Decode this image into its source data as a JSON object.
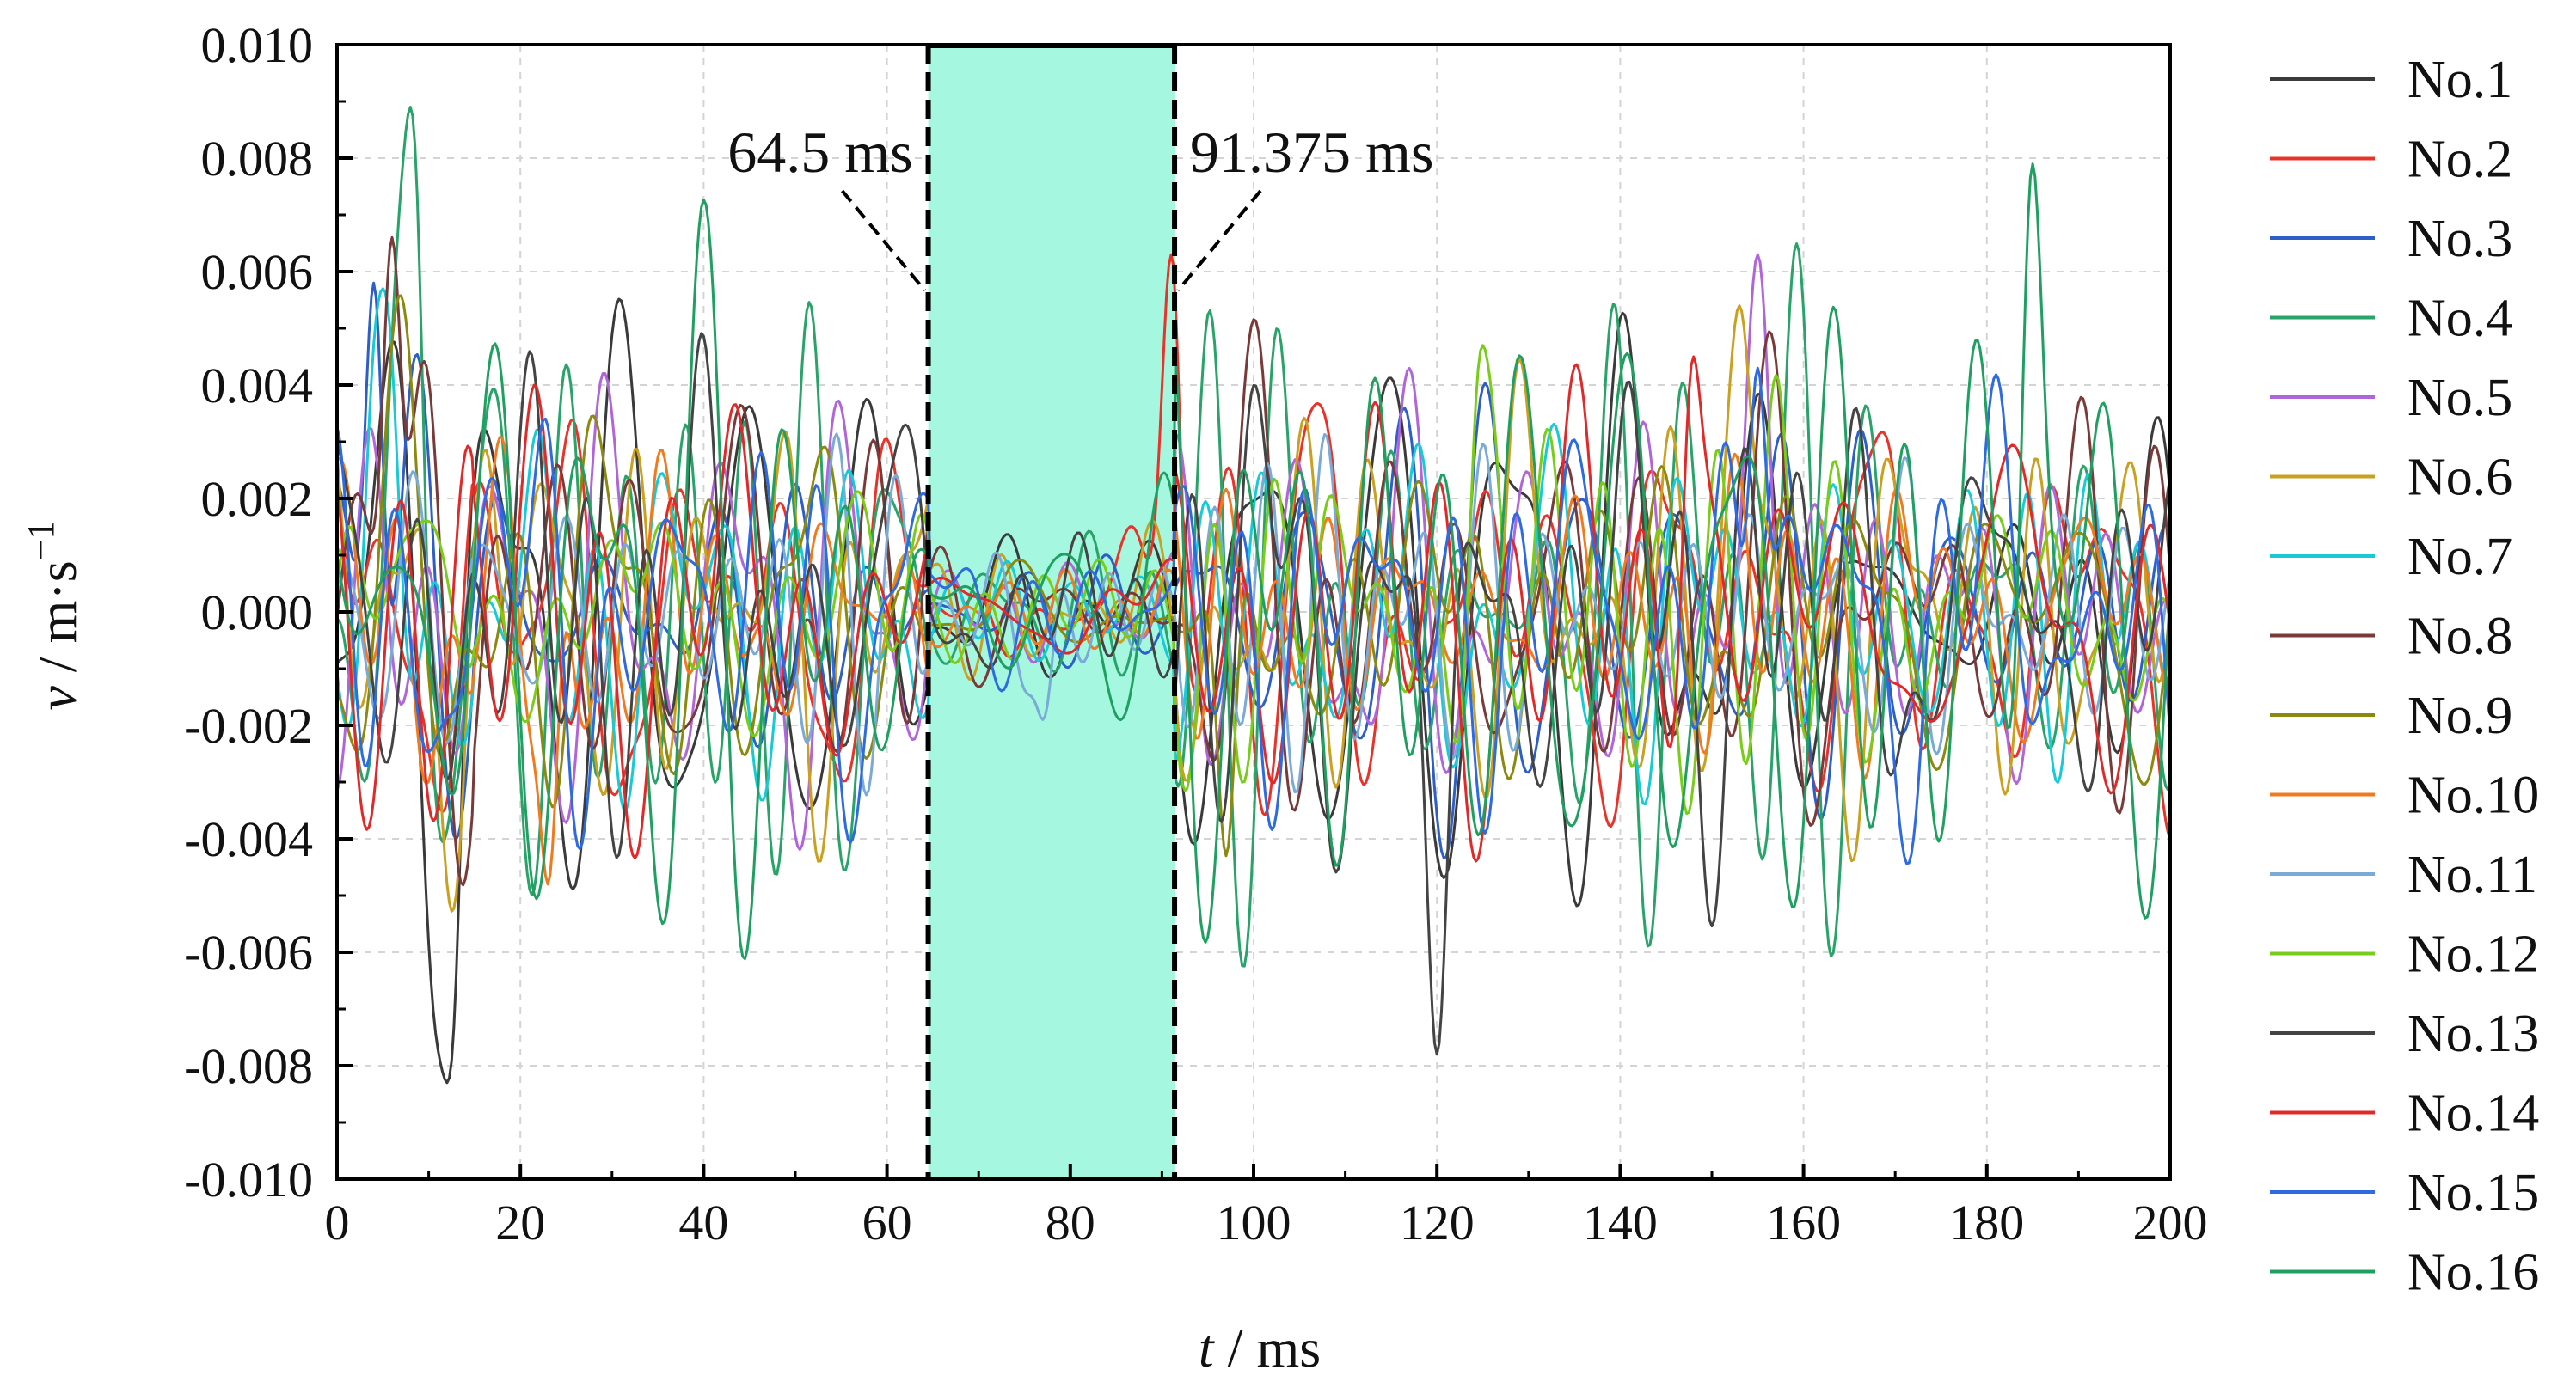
{
  "chart_data": {
    "type": "line",
    "title": "",
    "xlabel_var": "t",
    "xlabel_unit": " / ms",
    "ylabel_var": "v",
    "ylabel_unit": " / m·s",
    "ylabel_exp": "−1",
    "xlim": [
      0,
      200
    ],
    "ylim": [
      -0.01,
      0.01
    ],
    "grid": true,
    "legend_position": "right",
    "x_ticks": [
      "0",
      "20",
      "40",
      "60",
      "80",
      "100",
      "120",
      "140",
      "160",
      "180",
      "200"
    ],
    "x_tick_values": [
      0,
      20,
      40,
      60,
      80,
      100,
      120,
      140,
      160,
      180,
      200
    ],
    "y_ticks": [
      "0.010",
      "0.008",
      "0.006",
      "0.004",
      "0.002",
      "0.000",
      "-0.002",
      "-0.004",
      "-0.006",
      "-0.008",
      "-0.010"
    ],
    "y_tick_values": [
      0.01,
      0.008,
      0.006,
      0.004,
      0.002,
      0.0,
      -0.002,
      -0.004,
      -0.006,
      -0.008,
      -0.01
    ],
    "highlight_region": {
      "x_start": 64.5,
      "x_end": 91.375,
      "color": "#a6f7e0"
    },
    "annotations": [
      {
        "text": "64.5 ms",
        "x": 64.5
      },
      {
        "text": "91.375 ms",
        "x": 91.375
      }
    ],
    "series": [
      {
        "name": "No.1",
        "color": "#3a3a3a",
        "amplitude": 0.004,
        "spike": {
          "x": 12,
          "y": -0.0083
        }
      },
      {
        "name": "No.2",
        "color": "#e8332a",
        "amplitude": 0.0035,
        "spike": {
          "x": 91,
          "y": 0.0063
        }
      },
      {
        "name": "No.3",
        "color": "#2e5fc7",
        "amplitude": 0.003,
        "spike": {
          "x": 4,
          "y": 0.0058
        }
      },
      {
        "name": "No.4",
        "color": "#2aa36a",
        "amplitude": 0.0048,
        "spike": {
          "x": 8,
          "y": 0.0089
        }
      },
      {
        "name": "No.5",
        "color": "#b066d9",
        "amplitude": 0.003,
        "spike": {
          "x": 155,
          "y": 0.0063
        }
      },
      {
        "name": "No.6",
        "color": "#c9a020",
        "amplitude": 0.003,
        "spike": {
          "x": 153,
          "y": 0.0054
        }
      },
      {
        "name": "No.7",
        "color": "#18c9d6",
        "amplitude": 0.0028,
        "spike": {
          "x": 5,
          "y": 0.0057
        }
      },
      {
        "name": "No.8",
        "color": "#7a3a3a",
        "amplitude": 0.0035,
        "spike": {
          "x": 6,
          "y": 0.0066
        }
      },
      {
        "name": "No.9",
        "color": "#8a8a10",
        "amplitude": 0.003,
        "spike": {
          "x": 97,
          "y": -0.0043
        }
      },
      {
        "name": "No.10",
        "color": "#f07a20",
        "amplitude": 0.003,
        "spike": {
          "x": 23,
          "y": -0.0048
        }
      },
      {
        "name": "No.11",
        "color": "#7aaad6",
        "amplitude": 0.0025,
        "spike": {
          "x": 77,
          "y": -0.0019
        }
      },
      {
        "name": "No.12",
        "color": "#7acc1a",
        "amplitude": 0.0028,
        "spike": {
          "x": 125,
          "y": 0.0047
        }
      },
      {
        "name": "No.13",
        "color": "#444444",
        "amplitude": 0.0038,
        "spike": {
          "x": 120,
          "y": -0.0078
        }
      },
      {
        "name": "No.14",
        "color": "#e02a2a",
        "amplitude": 0.0035,
        "spike": {
          "x": 148,
          "y": 0.0045
        }
      },
      {
        "name": "No.15",
        "color": "#2e6ae0",
        "amplitude": 0.0032,
        "spike": {
          "x": 155,
          "y": 0.0043
        }
      },
      {
        "name": "No.16",
        "color": "#1fa060",
        "amplitude": 0.005,
        "spike": {
          "x": 185,
          "y": 0.0079
        }
      }
    ]
  }
}
